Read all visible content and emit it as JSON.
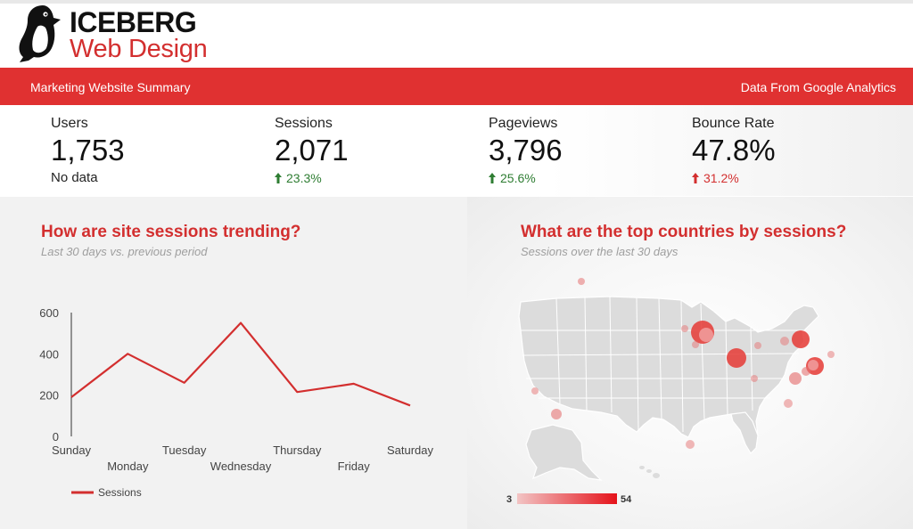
{
  "brand": {
    "line1": "ICEBERG",
    "line2": "Web Design",
    "icon": "penguin-icon",
    "accent": "#e03131"
  },
  "header": {
    "left": "Marketing Website Summary",
    "right": "Data From Google Analytics"
  },
  "kpis": [
    {
      "label": "Users",
      "value": "1,753",
      "sub": "No data"
    },
    {
      "label": "Sessions",
      "value": "2,071",
      "delta": "23.3%",
      "trend": "up",
      "status_color": "#2e7d32"
    },
    {
      "label": "Pageviews",
      "value": "3,796",
      "delta": "25.6%",
      "trend": "up",
      "status_color": "#2e7d32"
    },
    {
      "label": "Bounce Rate",
      "value": "47.8%",
      "delta": "31.2%",
      "trend": "up",
      "status_color": "#d32f2f"
    }
  ],
  "trend_panel": {
    "title": "How are site sessions trending?",
    "subtitle": "Last 30 days vs. previous period"
  },
  "map_panel": {
    "title": "What are the top countries by sessions?",
    "subtitle": "Sessions over the last 30 days",
    "legend_min": "3",
    "legend_max": "54"
  },
  "chart_data": {
    "type": "line",
    "categories": [
      "Sunday",
      "Monday",
      "Tuesday",
      "Wednesday",
      "Thursday",
      "Friday",
      "Saturday"
    ],
    "series": [
      {
        "name": "Sessions",
        "values": [
          190,
          400,
          260,
          550,
          215,
          255,
          150
        ],
        "color": "#d32f2f"
      }
    ],
    "ylim": [
      0,
      600
    ],
    "yticks": [
      "0",
      "200",
      "400",
      "600"
    ],
    "legend_position": "bottom-left",
    "grid": false
  }
}
